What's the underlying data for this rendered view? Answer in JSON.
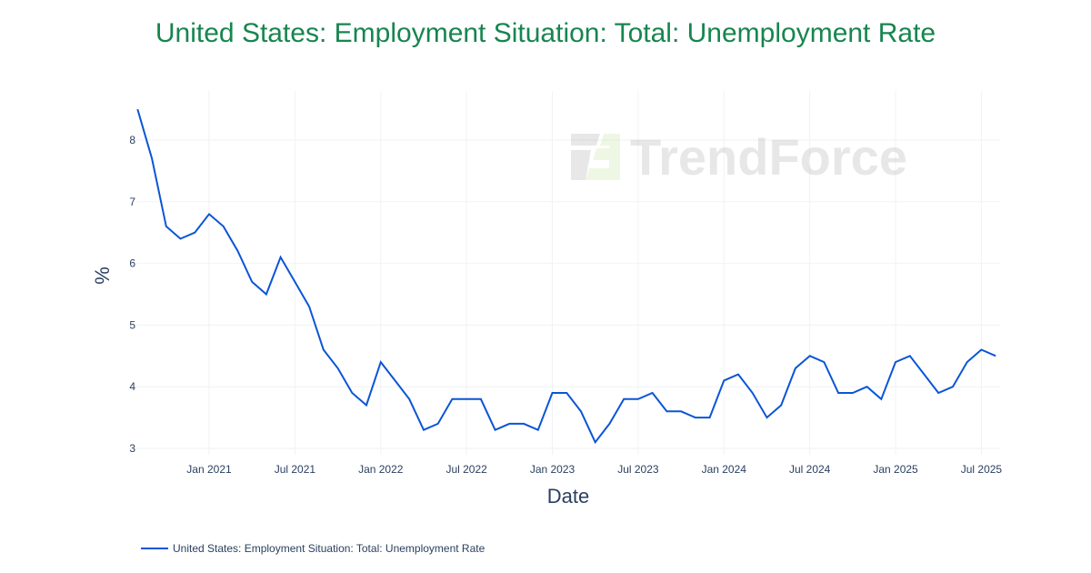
{
  "chart_data": {
    "type": "line",
    "title": "United States: Employment Situation: Total: Unemployment Rate",
    "xlabel": "Date",
    "ylabel": "%",
    "ylim": [
      2.8,
      8.8
    ],
    "yticks": [
      3,
      4,
      5,
      6,
      7,
      8
    ],
    "xticks": [
      {
        "label": "Jan 2021",
        "date": "2021-01"
      },
      {
        "label": "Jul 2021",
        "date": "2021-07"
      },
      {
        "label": "Jan 2022",
        "date": "2022-01"
      },
      {
        "label": "Jul 2022",
        "date": "2022-07"
      },
      {
        "label": "Jan 2023",
        "date": "2023-01"
      },
      {
        "label": "Jul 2023",
        "date": "2023-07"
      },
      {
        "label": "Jan 2024",
        "date": "2024-01"
      },
      {
        "label": "Jul 2024",
        "date": "2024-07"
      },
      {
        "label": "Jan 2025",
        "date": "2025-01"
      },
      {
        "label": "Jul 2025",
        "date": "2025-07"
      }
    ],
    "grid": true,
    "legend_position": "bottom-left",
    "watermark": "TrendForce",
    "series": [
      {
        "name": "United States: Employment Situation: Total: Unemployment Rate",
        "color": "#0b55d6",
        "start": "2020-08",
        "values": [
          8.5,
          7.7,
          6.6,
          6.4,
          6.5,
          6.8,
          6.6,
          6.2,
          5.7,
          5.5,
          6.1,
          5.7,
          5.3,
          4.6,
          4.3,
          3.9,
          3.7,
          4.4,
          4.1,
          3.8,
          3.3,
          3.4,
          3.8,
          3.8,
          3.8,
          3.3,
          3.4,
          3.4,
          3.3,
          3.9,
          3.9,
          3.6,
          3.1,
          3.4,
          3.8,
          3.8,
          3.9,
          3.6,
          3.6,
          3.5,
          3.5,
          4.1,
          4.2,
          3.9,
          3.5,
          3.7,
          4.3,
          4.5,
          4.4,
          3.9,
          3.9,
          4.0,
          3.8,
          4.4,
          4.5,
          4.2,
          3.9,
          4.0,
          4.4,
          4.6,
          4.5
        ]
      }
    ]
  }
}
